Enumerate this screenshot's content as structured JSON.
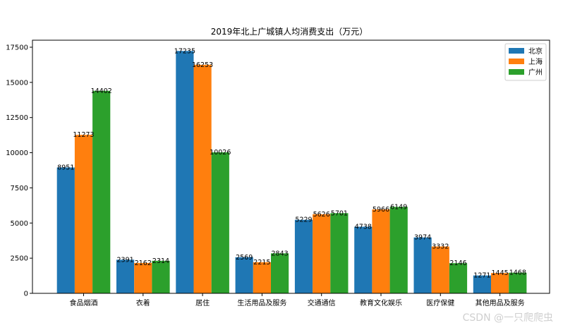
{
  "chart_data": {
    "type": "bar",
    "title": "2019年北上广城镇人均消费支出（万元）",
    "xlabel": "",
    "ylabel": "",
    "ylim": [
      0,
      18000
    ],
    "yticks": [
      0,
      2500,
      5000,
      7500,
      10000,
      12500,
      15000,
      17500
    ],
    "legend_position": "top-right",
    "grid": false,
    "categories": [
      "食品烟酒",
      "衣着",
      "居住",
      "生活用品及服务",
      "交通通信",
      "教育文化娱乐",
      "医疗保健",
      "其他用品及服务"
    ],
    "series": [
      {
        "name": "北京",
        "color": "#1f77b4",
        "values": [
          8951,
          2391,
          17235,
          2569,
          5229,
          4738,
          3974,
          1271
        ]
      },
      {
        "name": "上海",
        "color": "#ff7f0e",
        "values": [
          11273,
          2162,
          16253,
          2215,
          5626,
          5966,
          3332,
          1445
        ]
      },
      {
        "name": "广州",
        "color": "#2ca02c",
        "values": [
          14402,
          2314,
          10026,
          2843,
          5701,
          6149,
          2146,
          1468
        ]
      }
    ]
  },
  "watermark": "CSDN @一只爬爬虫"
}
